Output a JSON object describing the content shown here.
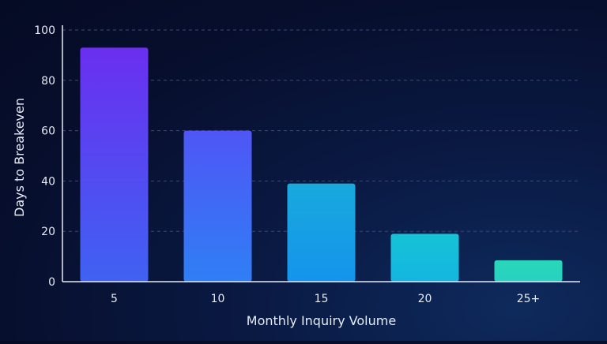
{
  "chart_data": {
    "type": "bar",
    "title": "",
    "xlabel": "Monthly Inquiry Volume",
    "ylabel": "Days to Breakeven",
    "categories": [
      "5",
      "10",
      "15",
      "20",
      "25+"
    ],
    "values": [
      93,
      60,
      39,
      19,
      8.5
    ],
    "ylim": [
      0,
      100
    ],
    "yticks": [
      "0",
      "20",
      "40",
      "60",
      "80",
      "100"
    ],
    "grid": true,
    "legend": "none",
    "colors": {
      "top": [
        "#6a2ff0",
        "#4f56f5",
        "#19a9dc",
        "#17c2d6",
        "#2bd6b8"
      ],
      "bottom": [
        "#3f62f2",
        "#2f7ff5",
        "#1494ec",
        "#13b6e0",
        "#26d2c2"
      ],
      "gridline": "#3a4a78",
      "axis": "#e6ebf5"
    }
  }
}
